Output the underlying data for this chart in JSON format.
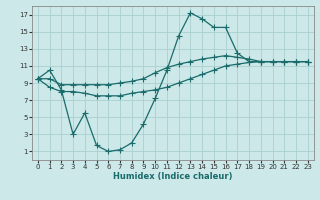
{
  "title": "",
  "xlabel": "Humidex (Indice chaleur)",
  "ylabel": "",
  "bg_color": "#cce8e8",
  "grid_color": "#aacfcf",
  "line_color": "#1a6b6b",
  "xlim": [
    -0.5,
    23.5
  ],
  "ylim": [
    0,
    18
  ],
  "xticks": [
    0,
    1,
    2,
    3,
    4,
    5,
    6,
    7,
    8,
    9,
    10,
    11,
    12,
    13,
    14,
    15,
    16,
    17,
    18,
    19,
    20,
    21,
    22,
    23
  ],
  "yticks": [
    1,
    3,
    5,
    7,
    9,
    11,
    13,
    15,
    17
  ],
  "line1_x": [
    0,
    1,
    2,
    3,
    4,
    5,
    6,
    7,
    8,
    9,
    10,
    11,
    12,
    13,
    14,
    15,
    16,
    17,
    18,
    19,
    20,
    21,
    22,
    23
  ],
  "line1_y": [
    9.5,
    10.5,
    8.2,
    3.0,
    5.5,
    1.7,
    1.0,
    1.2,
    2.0,
    4.2,
    7.2,
    10.5,
    14.5,
    17.2,
    16.5,
    15.5,
    15.5,
    12.5,
    11.5,
    11.5,
    11.5,
    11.5,
    11.5,
    11.5
  ],
  "line2_x": [
    0,
    1,
    2,
    3,
    4,
    5,
    6,
    7,
    8,
    9,
    10,
    11,
    12,
    13,
    14,
    15,
    16,
    17,
    18,
    19,
    20,
    21,
    22,
    23
  ],
  "line2_y": [
    9.5,
    9.5,
    8.8,
    8.8,
    8.8,
    8.8,
    8.8,
    9.0,
    9.2,
    9.5,
    10.2,
    10.8,
    11.2,
    11.5,
    11.8,
    12.0,
    12.2,
    12.0,
    11.8,
    11.5,
    11.5,
    11.5,
    11.5,
    11.5
  ],
  "line3_x": [
    0,
    1,
    2,
    3,
    4,
    5,
    6,
    7,
    8,
    9,
    10,
    11,
    12,
    13,
    14,
    15,
    16,
    17,
    18,
    19,
    20,
    21,
    22,
    23
  ],
  "line3_y": [
    9.5,
    8.5,
    8.0,
    8.0,
    7.8,
    7.5,
    7.5,
    7.5,
    7.8,
    8.0,
    8.2,
    8.5,
    9.0,
    9.5,
    10.0,
    10.5,
    11.0,
    11.2,
    11.4,
    11.5,
    11.5,
    11.5,
    11.5,
    11.5
  ]
}
